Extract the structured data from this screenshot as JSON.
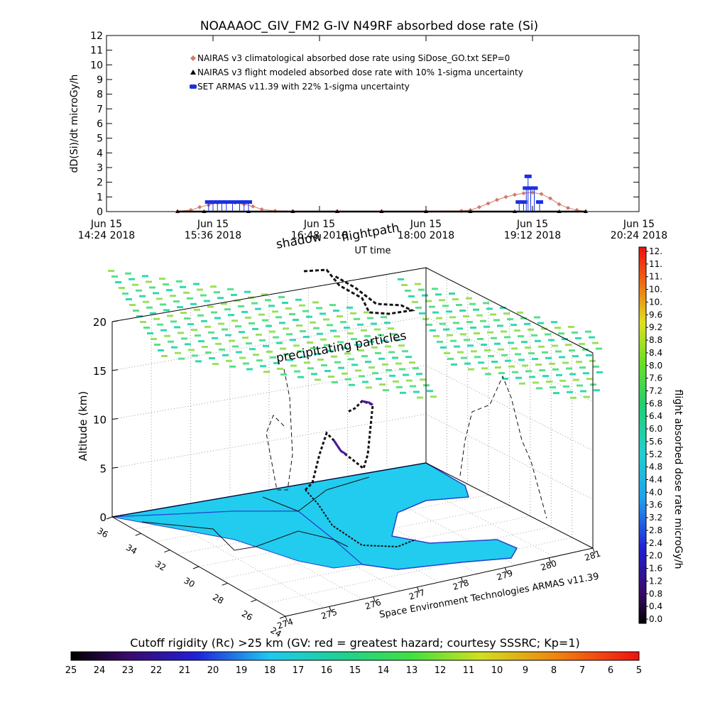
{
  "chart_data": [
    {
      "type": "scatter",
      "title": "NOAAAOC_GIV_FM2 G-IV   N49RF  absorbed dose rate (Si)",
      "ylabel": "dD(Si)/dt microGy/h",
      "xlabel": "UT time",
      "ylim": [
        0,
        12
      ],
      "y_ticks": [
        "0",
        "1",
        "2",
        "3",
        "4",
        "5",
        "6",
        "7",
        "8",
        "9",
        "10",
        "11",
        "12"
      ],
      "x_ticks": [
        {
          "line1": "Jun 15",
          "line2": "14:24 2018"
        },
        {
          "line1": "Jun 15",
          "line2": "15:36 2018"
        },
        {
          "line1": "Jun 15",
          "line2": "16:48 2018"
        },
        {
          "line1": "Jun 15",
          "line2": "18:00 2018"
        },
        {
          "line1": "Jun 15",
          "line2": "19:12 2018"
        },
        {
          "line1": "Jun 15",
          "line2": "20:24 2018"
        }
      ],
      "x_range_hours": [
        14.4,
        20.4
      ],
      "legend": [
        {
          "symbol": "diamond",
          "color": "#d07a6a",
          "text": "NAIRAS v3 climatological absorbed dose rate using SiDose_GO.txt SEP=0"
        },
        {
          "symbol": "triangle",
          "color": "#000000",
          "text": "NAIRAS v3 flight modeled absorbed dose rate with 10% 1-sigma uncertainty"
        },
        {
          "symbol": "dot",
          "color": "#1a30e0",
          "text": "SET ARMAS v11.39 with 22% 1-sigma uncertainty"
        }
      ],
      "legend_position": "top-left",
      "series": [
        {
          "name": "NAIRAS v3 climatological absorbed dose rate using SiDose_GO.txt SEP=0",
          "color": "#d07a6a",
          "points": [
            [
              15.2,
              0.02
            ],
            [
              15.35,
              0.1
            ],
            [
              15.45,
              0.3
            ],
            [
              15.55,
              0.45
            ],
            [
              15.65,
              0.6
            ],
            [
              15.75,
              0.62
            ],
            [
              15.85,
              0.6
            ],
            [
              15.95,
              0.5
            ],
            [
              16.05,
              0.35
            ],
            [
              16.15,
              0.15
            ],
            [
              16.3,
              0.05
            ],
            [
              16.5,
              0.03
            ],
            [
              17.0,
              0.03
            ],
            [
              17.5,
              0.03
            ],
            [
              18.0,
              0.03
            ],
            [
              18.4,
              0.05
            ],
            [
              18.5,
              0.1
            ],
            [
              18.6,
              0.3
            ],
            [
              18.7,
              0.55
            ],
            [
              18.8,
              0.8
            ],
            [
              18.9,
              1.0
            ],
            [
              19.0,
              1.15
            ],
            [
              19.1,
              1.25
            ],
            [
              19.2,
              1.3
            ],
            [
              19.3,
              1.2
            ],
            [
              19.4,
              0.9
            ],
            [
              19.5,
              0.5
            ],
            [
              19.6,
              0.25
            ],
            [
              19.7,
              0.1
            ],
            [
              19.8,
              0.02
            ]
          ]
        },
        {
          "name": "NAIRAS v3 flight modeled absorbed dose rate with 10% 1-sigma uncertainty",
          "color": "#000000",
          "points": [
            [
              15.2,
              0
            ],
            [
              15.5,
              0
            ],
            [
              16.0,
              0
            ],
            [
              16.5,
              0
            ],
            [
              17.0,
              0
            ],
            [
              17.5,
              0
            ],
            [
              18.0,
              0
            ],
            [
              18.5,
              0
            ],
            [
              19.0,
              0
            ],
            [
              19.5,
              0
            ],
            [
              19.8,
              0
            ]
          ]
        },
        {
          "name": "SET ARMAS v11.39 with 22% 1-sigma uncertainty",
          "color": "#1a30e0",
          "points": [
            [
              15.55,
              0.65
            ],
            [
              15.6,
              0.65
            ],
            [
              15.65,
              0.65
            ],
            [
              15.7,
              0.65
            ],
            [
              15.75,
              0.65
            ],
            [
              15.82,
              0.65
            ],
            [
              15.9,
              0.65
            ],
            [
              15.95,
              0.65
            ],
            [
              16.0,
              0.65
            ],
            [
              19.05,
              0.65
            ],
            [
              19.1,
              0.65
            ],
            [
              19.13,
              1.6
            ],
            [
              19.18,
              1.6
            ],
            [
              19.22,
              1.6
            ],
            [
              19.15,
              2.4
            ],
            [
              19.28,
              0.65
            ]
          ]
        }
      ]
    },
    {
      "type": "scatter",
      "title": "",
      "zlabel": "Altitude (km)",
      "z_ticks": [
        "0",
        "5",
        "10",
        "15",
        "20"
      ],
      "zlim": [
        0,
        20
      ],
      "lat_ticks": [
        "36",
        "34",
        "32",
        "30",
        "28",
        "26",
        "24"
      ],
      "lon_ticks": [
        "274",
        "275",
        "276",
        "277",
        "278",
        "279",
        "280",
        "281"
      ],
      "annotations": [
        "shadow",
        "flightpath",
        "precipitating particles"
      ],
      "attribution": "Space Environment Technologies ARMAS v11.39",
      "colorbar": {
        "label": "flight absorbed dose rate microGy/h",
        "ticks": [
          "12.",
          "11.",
          "11.",
          "10.",
          "10.",
          "9.6",
          "9.2",
          "8.8",
          "8.4",
          "8.0",
          "7.6",
          "7.2",
          "6.8",
          "6.4",
          "6.0",
          "5.6",
          "5.2",
          "4.8",
          "4.4",
          "4.0",
          "3.6",
          "3.2",
          "2.8",
          "2.4",
          "2.0",
          "1.6",
          "1.2",
          "0.8",
          "0.4",
          "0.0"
        ]
      }
    },
    {
      "type": "heatmap",
      "title": "Cutoff rigidity (Rc) >25 km (GV: red = greatest hazard; courtesy SSSRC; Kp=1)",
      "colorbar_ticks": [
        "25",
        "24",
        "23",
        "22",
        "21",
        "20",
        "19",
        "18",
        "17",
        "16",
        "15",
        "14",
        "13",
        "12",
        "11",
        "10",
        "9",
        "8",
        "7",
        "6",
        "5"
      ]
    }
  ]
}
